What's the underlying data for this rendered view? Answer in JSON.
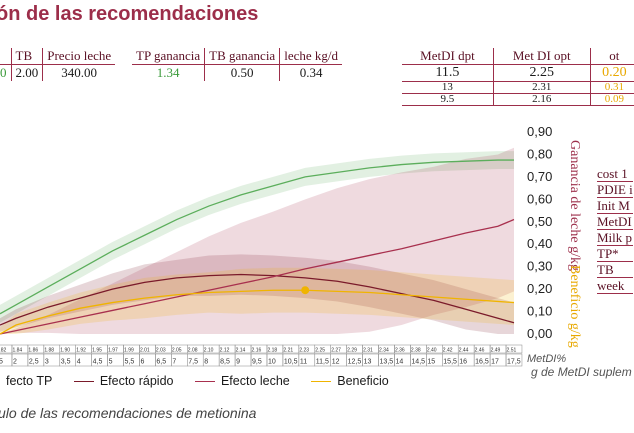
{
  "title": "ón de las recomendaciones",
  "table_left": {
    "headers": [
      "TB",
      "Precio leche"
    ],
    "values": [
      "2.00",
      "340.00"
    ],
    "left_fragment": "0"
  },
  "table_mid": {
    "headers": [
      "TP ganancia",
      "TB ganancia",
      "leche kg/d"
    ],
    "values": [
      "1.34",
      "0.50",
      "0.34"
    ]
  },
  "table_right": {
    "headers": [
      "MetDI dpt",
      "Met DI opt",
      "ot"
    ],
    "rows": [
      [
        "11.5",
        "2.25",
        "0.20"
      ],
      [
        "13",
        "2.31",
        "0.31"
      ],
      [
        "9.5",
        "2.16",
        "0.09"
      ]
    ]
  },
  "right_list": [
    "cost 1",
    "PDIE i",
    "Init M",
    "MetDI",
    "Milk p",
    "TP*",
    "TB",
    "week"
  ],
  "legend": [
    {
      "label": "fecto TP",
      "color": "#5cae5c"
    },
    {
      "label": "Efecto rápido",
      "color": "#7a1a2a"
    },
    {
      "label": "Efecto leche",
      "color": "#a8304e"
    },
    {
      "label": "Beneficio",
      "color": "#f0b400"
    }
  ],
  "caption": "ulo de las recomendaciones de metionina",
  "chart_data": {
    "type": "line",
    "ylim": [
      0,
      0.9
    ],
    "yticks": [
      "0,00",
      "0,10",
      "0,20",
      "0,30",
      "0,40",
      "0,50",
      "0,60",
      "0,70",
      "0,80",
      "0,90"
    ],
    "ylabel_primary": "Ganancia de leche g/kg",
    "ylabel_secondary": "Beneficio g/kg",
    "xlabel_top": "MetDI%",
    "xlabel_bottom": "g de MetDI suplem",
    "x_top": [
      "1.82",
      "1.84",
      "1.86",
      "1.88",
      "1.90",
      "1.92",
      "1.95",
      "1.97",
      "1.99",
      "2.01",
      "2.03",
      "2.05",
      "2.08",
      "2.10",
      "2.12",
      "2.14",
      "2.16",
      "2.18",
      "2.21",
      "2.23",
      "2.25",
      "2.27",
      "2.29",
      "2.31",
      "2.34",
      "2.36",
      "2.38",
      "2.40",
      "2.42",
      "2.44",
      "2.46",
      "2.49",
      "2.51"
    ],
    "x_bottom": [
      ",5",
      "2",
      "2,5",
      "3",
      "3,5",
      "4",
      "4,5",
      "5",
      "5,5",
      "6",
      "6,5",
      "7",
      "7,5",
      "8",
      "8,5",
      "9",
      "9,5",
      "10",
      "10,5",
      "11",
      "11,5",
      "12",
      "12,5",
      "13",
      "13,5",
      "14",
      "14,5",
      "15",
      "15,5",
      "16",
      "16,5",
      "17",
      "17,5"
    ],
    "x": [
      1.5,
      2,
      3,
      4,
      5,
      6,
      7,
      8,
      9,
      10,
      11,
      12,
      13,
      14,
      15,
      16,
      17,
      17.5
    ],
    "series": [
      {
        "name": "fecto TP",
        "color": "#5cae5c",
        "values": [
          0.09,
          0.13,
          0.21,
          0.29,
          0.37,
          0.44,
          0.51,
          0.57,
          0.62,
          0.66,
          0.7,
          0.72,
          0.74,
          0.755,
          0.765,
          0.77,
          0.775,
          0.775
        ],
        "band": [
          0.04,
          0.04,
          0.04,
          0.04,
          0.04,
          0.04,
          0.04,
          0.04,
          0.04,
          0.04,
          0.04,
          0.04,
          0.04,
          0.04,
          0.04,
          0.04,
          0.04,
          0.04
        ]
      },
      {
        "name": "Efecto rápido",
        "color": "#7a1a2a",
        "values": [
          0.04,
          0.07,
          0.12,
          0.16,
          0.2,
          0.23,
          0.25,
          0.26,
          0.265,
          0.26,
          0.25,
          0.235,
          0.21,
          0.18,
          0.15,
          0.11,
          0.07,
          0.05
        ],
        "band": [
          0.03,
          0.04,
          0.05,
          0.06,
          0.07,
          0.08,
          0.08,
          0.09,
          0.09,
          0.09,
          0.09,
          0.09,
          0.09,
          0.09,
          0.09,
          0.09,
          0.09,
          0.09
        ]
      },
      {
        "name": "Efecto leche",
        "color": "#a8304e",
        "values": [
          0.0,
          0.015,
          0.045,
          0.075,
          0.105,
          0.135,
          0.165,
          0.195,
          0.225,
          0.255,
          0.29,
          0.32,
          0.35,
          0.38,
          0.415,
          0.45,
          0.48,
          0.51
        ],
        "band": [
          0.0,
          0.01,
          0.04,
          0.08,
          0.12,
          0.16,
          0.2,
          0.24,
          0.27,
          0.29,
          0.31,
          0.33,
          0.34,
          0.34,
          0.33,
          0.33,
          0.32,
          0.32
        ]
      },
      {
        "name": "Beneficio",
        "color": "#f0b400",
        "values": [
          0.0,
          0.04,
          0.08,
          0.115,
          0.14,
          0.16,
          0.175,
          0.185,
          0.19,
          0.195,
          0.195,
          0.19,
          0.185,
          0.175,
          0.165,
          0.155,
          0.145,
          0.14
        ],
        "band": [
          0.03,
          0.05,
          0.06,
          0.07,
          0.08,
          0.09,
          0.09,
          0.09,
          0.1,
          0.1,
          0.1,
          0.1,
          0.1,
          0.1,
          0.1,
          0.1,
          0.1,
          0.1
        ]
      }
    ],
    "optimum": {
      "x": 11,
      "y": 0.195,
      "color": "#f0b400"
    }
  }
}
